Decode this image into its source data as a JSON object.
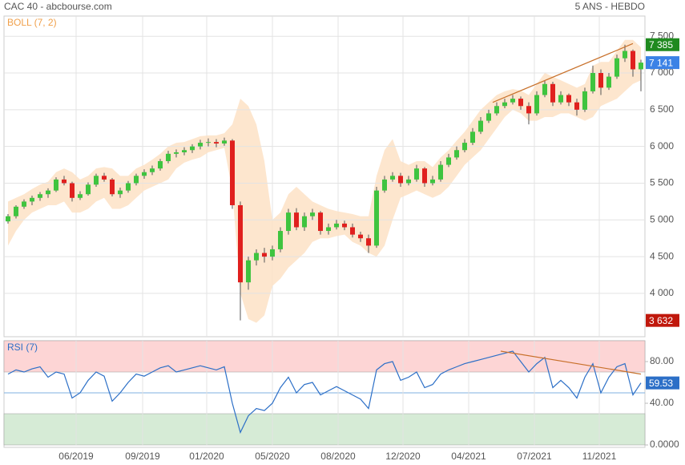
{
  "chart_data": [
    {
      "type": "candlestick",
      "title": "CAC 40 - abcbourse.com",
      "subtitle": "5 ANS - HEBDO",
      "xlim": [
        0,
        80
      ],
      "ylim": [
        3410,
        7775
      ],
      "yticks": [
        {
          "value": 4000,
          "label": "4 000"
        },
        {
          "value": 4500,
          "label": "4 500"
        },
        {
          "value": 5000,
          "label": "5 000"
        },
        {
          "value": 5500,
          "label": "5 500"
        },
        {
          "value": 6000,
          "label": "6 000"
        },
        {
          "value": 6500,
          "label": "6 500"
        },
        {
          "value": 7000,
          "label": "7 000"
        },
        {
          "value": 7500,
          "label": "7 500"
        }
      ],
      "grid": true,
      "up_color": "#3fc43f",
      "down_color": "#e0201e",
      "open": [
        4980,
        5050,
        5180,
        5250,
        5300,
        5350,
        5400,
        5550,
        5500,
        5300,
        5350,
        5480,
        5600,
        5550,
        5350,
        5400,
        5500,
        5600,
        5650,
        5700,
        5800,
        5900,
        5920,
        5950,
        6000,
        6050,
        6060,
        6040,
        6080,
        5200,
        4150,
        4450,
        4550,
        4500,
        4600,
        4850,
        5100,
        4900,
        5050,
        5100,
        4850,
        4900,
        4950,
        4900,
        4800,
        4750,
        4650,
        5400,
        5550,
        5600,
        5500,
        5550,
        5700,
        5500,
        5550,
        5750,
        5850,
        5950,
        6050,
        6200,
        6350,
        6450,
        6550,
        6600,
        6650,
        6550,
        6450,
        6700,
        6850,
        6600,
        6700,
        6600,
        6500,
        6750,
        7000,
        6800,
        6950,
        7200,
        7300,
        7050
      ],
      "high": [
        5080,
        5200,
        5280,
        5330,
        5380,
        5430,
        5580,
        5600,
        5520,
        5390,
        5510,
        5630,
        5640,
        5570,
        5440,
        5530,
        5630,
        5690,
        5740,
        5830,
        5940,
        5960,
        5990,
        6030,
        6090,
        6110,
        6100,
        6120,
        6100,
        5250,
        4500,
        4600,
        4620,
        4650,
        4900,
        5150,
        5160,
        5100,
        5150,
        5120,
        4950,
        5000,
        4990,
        4950,
        4840,
        4800,
        5450,
        5600,
        5650,
        5640,
        5600,
        5750,
        5720,
        5600,
        5800,
        5900,
        6000,
        6100,
        6250,
        6400,
        6500,
        6600,
        6650,
        6700,
        6680,
        6600,
        6750,
        6900,
        6880,
        6750,
        6720,
        6650,
        6800,
        7100,
        7050,
        7000,
        7250,
        7385,
        7320,
        7180
      ],
      "low": [
        4950,
        5020,
        5150,
        5200,
        5260,
        5300,
        5380,
        5470,
        5250,
        5270,
        5330,
        5450,
        5520,
        5320,
        5300,
        5370,
        5470,
        5560,
        5610,
        5670,
        5770,
        5850,
        5880,
        5910,
        5960,
        6000,
        5990,
        6010,
        5150,
        3632,
        4050,
        4380,
        4420,
        4450,
        4560,
        4800,
        4860,
        4850,
        5000,
        4800,
        4800,
        4870,
        4860,
        4760,
        4700,
        4550,
        4620,
        5370,
        5520,
        5450,
        5470,
        5520,
        5450,
        5470,
        5520,
        5720,
        5820,
        5920,
        6020,
        6170,
        6320,
        6420,
        6520,
        6570,
        6500,
        6300,
        6420,
        6670,
        6550,
        6570,
        6550,
        6420,
        6470,
        6720,
        6700,
        6770,
        6920,
        7150,
        6950,
        6750
      ],
      "close": [
        5050,
        5180,
        5250,
        5300,
        5350,
        5400,
        5550,
        5500,
        5300,
        5350,
        5480,
        5600,
        5550,
        5350,
        5400,
        5500,
        5600,
        5650,
        5700,
        5800,
        5900,
        5920,
        5950,
        6000,
        6050,
        6060,
        6040,
        6080,
        5200,
        4150,
        4450,
        4550,
        4500,
        4600,
        4850,
        5100,
        4900,
        5050,
        5100,
        4850,
        4900,
        4950,
        4900,
        4800,
        4750,
        4650,
        5400,
        5550,
        5600,
        5500,
        5550,
        5700,
        5500,
        5550,
        5750,
        5850,
        5950,
        6050,
        6200,
        6350,
        6450,
        6550,
        6600,
        6650,
        6550,
        6450,
        6700,
        6850,
        6600,
        6700,
        6600,
        6500,
        6750,
        7000,
        6800,
        6950,
        7200,
        7300,
        7050,
        7141
      ],
      "bands": {
        "name": "BOLL (7, 2)",
        "color": "#fde2c6",
        "label_color": "#f0a04b",
        "upper": [
          5250,
          5300,
          5350,
          5420,
          5480,
          5520,
          5650,
          5700,
          5650,
          5550,
          5600,
          5700,
          5720,
          5700,
          5600,
          5600,
          5700,
          5750,
          5820,
          5900,
          6000,
          6050,
          6060,
          6100,
          6140,
          6150,
          6150,
          6180,
          6300,
          6650,
          6550,
          6300,
          5800,
          5000,
          5100,
          5350,
          5450,
          5350,
          5250,
          5200,
          5150,
          5120,
          5100,
          5080,
          5050,
          5050,
          5600,
          5950,
          6100,
          5800,
          5750,
          5800,
          5800,
          5720,
          5850,
          5950,
          6080,
          6200,
          6350,
          6500,
          6600,
          6700,
          6750,
          6780,
          6760,
          6700,
          6850,
          7000,
          6950,
          6900,
          6850,
          6800,
          6850,
          7100,
          7150,
          7150,
          7300,
          7450,
          7450,
          7350
        ],
        "lower": [
          4650,
          4850,
          5000,
          5100,
          5150,
          5200,
          5200,
          5250,
          5100,
          5100,
          5150,
          5250,
          5300,
          5150,
          5150,
          5200,
          5300,
          5400,
          5450,
          5500,
          5550,
          5700,
          5780,
          5820,
          5850,
          5920,
          5950,
          5980,
          5400,
          4000,
          3650,
          3600,
          3700,
          4100,
          4200,
          4350,
          4450,
          4550,
          4700,
          4750,
          4750,
          4780,
          4800,
          4700,
          4650,
          4550,
          4500,
          4650,
          5000,
          5300,
          5350,
          5400,
          5350,
          5300,
          5350,
          5450,
          5600,
          5750,
          5850,
          5950,
          6100,
          6250,
          6400,
          6500,
          6450,
          6350,
          6350,
          6400,
          6400,
          6450,
          6450,
          6400,
          6350,
          6400,
          6550,
          6600,
          6650,
          6750,
          6850,
          6900
        ]
      },
      "trendline": {
        "x": [
          61,
          78.5
        ],
        "y": [
          6600,
          7400
        ],
        "color": "#c8702a"
      },
      "high_label": {
        "value": 7385,
        "label": "7 385",
        "color": "#1f8a1f"
      },
      "last_label": {
        "value": 7141,
        "label": "7 141",
        "color": "#3b82e6"
      },
      "low_label": {
        "value": 3632,
        "label": "3 632",
        "color": "#c0180c"
      }
    },
    {
      "type": "line",
      "xlim": [
        0,
        80
      ],
      "ylim": [
        0,
        100
      ],
      "yticks": [
        {
          "value": 0,
          "label": "0.0000"
        },
        {
          "value": 40,
          "label": "40.00"
        },
        {
          "value": 80,
          "label": "80.00"
        }
      ],
      "xticks": [
        {
          "value": 9,
          "label": "06/2019"
        },
        {
          "value": 17.3,
          "label": "09/2019"
        },
        {
          "value": 25.3,
          "label": "01/2020"
        },
        {
          "value": 33.5,
          "label": "05/2020"
        },
        {
          "value": 41.7,
          "label": "08/2020"
        },
        {
          "value": 49.8,
          "label": "12/2020"
        },
        {
          "value": 58,
          "label": "04/2021"
        },
        {
          "value": 66.2,
          "label": "07/2021"
        },
        {
          "value": 74.3,
          "label": "11/2021"
        }
      ],
      "zones": [
        {
          "from": 70,
          "to": 100,
          "color": "#fdd5d5"
        },
        {
          "from": 0,
          "to": 30,
          "color": "#d6ebd6"
        }
      ],
      "midline": 50,
      "series": [
        {
          "name": "RSI (7)",
          "color": "#2c6fc7",
          "values": [
            68,
            72,
            70,
            73,
            75,
            65,
            70,
            68,
            45,
            50,
            62,
            70,
            66,
            42,
            50,
            60,
            68,
            66,
            70,
            74,
            76,
            70,
            72,
            74,
            76,
            74,
            72,
            75,
            40,
            12,
            28,
            35,
            33,
            40,
            55,
            65,
            50,
            58,
            60,
            48,
            52,
            56,
            52,
            48,
            44,
            35,
            72,
            78,
            80,
            62,
            65,
            70,
            55,
            58,
            68,
            72,
            75,
            78,
            80,
            82,
            84,
            86,
            88,
            90,
            80,
            70,
            78,
            84,
            55,
            62,
            55,
            45,
            65,
            78,
            50,
            65,
            75,
            78,
            48,
            59.53
          ]
        }
      ],
      "trendline": {
        "x": [
          62,
          79.5
        ],
        "y": [
          90,
          68
        ],
        "color": "#c8702a"
      },
      "last_label": {
        "value": 59.53,
        "label": "59.53",
        "color": "#2c6fc7"
      }
    }
  ]
}
